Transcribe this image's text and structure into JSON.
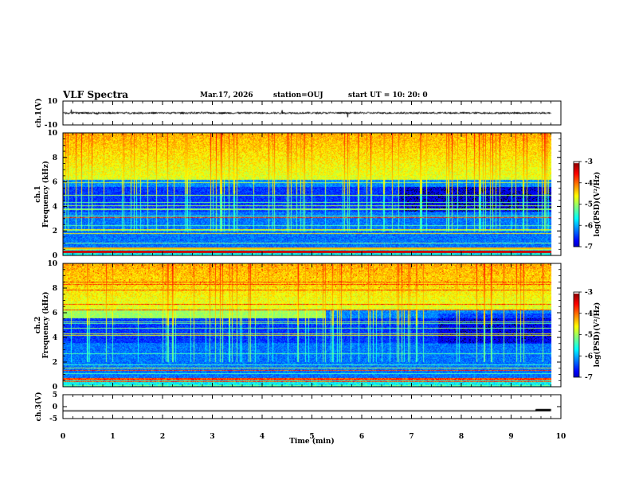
{
  "header": {
    "title": "VLF Spectra",
    "date": "Mar.17, 2026",
    "station": "station=OUJ",
    "start_ut": "start  UT =    10: 20: 0"
  },
  "chart_data": [
    {
      "type": "line",
      "name": "ch1-waveform",
      "ylabel": "ch.1(V)",
      "ylim": [
        -10,
        10
      ],
      "yticks": [
        "10",
        "-10"
      ],
      "x_range_min": [
        0,
        9.8
      ],
      "description_values": "noisy waveform centred near 0 V with amplitude about ±1 V"
    },
    {
      "type": "heatmap",
      "name": "ch1-spectrogram",
      "ylabel": "ch.1\nFrequency (kHz)",
      "ylim": [
        0,
        10
      ],
      "yticks": [
        "0",
        "2",
        "4",
        "6",
        "8",
        "10"
      ],
      "xlim": [
        0,
        10
      ],
      "colorbar": {
        "label": "log(PSD)(V²/Hz)",
        "range": [
          -7,
          -3
        ],
        "ticks": [
          "-3",
          "-4",
          "-5",
          "-6",
          "-7"
        ]
      }
    },
    {
      "type": "heatmap",
      "name": "ch2-spectrogram",
      "ylabel": "ch.2\nFrequency (kHz)",
      "ylim": [
        0,
        10
      ],
      "yticks": [
        "0",
        "2",
        "4",
        "6",
        "8",
        "10"
      ],
      "xlim": [
        0,
        10
      ],
      "colorbar": {
        "label": "log(PSD)(V²/Hz)",
        "range": [
          -7,
          -3
        ],
        "ticks": [
          "-3",
          "-4",
          "-5",
          "-6",
          "-7"
        ]
      }
    },
    {
      "type": "line",
      "name": "ch3-level",
      "ylabel": "ch.3(V)",
      "ylim": [
        -5,
        5
      ],
      "yticks": [
        "5",
        "0",
        "-5"
      ],
      "x": [
        0,
        9.5,
        9.5,
        9.8
      ],
      "y": [
        -1.8,
        -1.8,
        -1.3,
        -1.3
      ]
    }
  ],
  "xaxis": {
    "label": "Time  (min)",
    "ticks": [
      "0",
      "1",
      "2",
      "3",
      "4",
      "5",
      "6",
      "7",
      "8",
      "9",
      "10"
    ],
    "range": [
      0,
      10
    ]
  }
}
